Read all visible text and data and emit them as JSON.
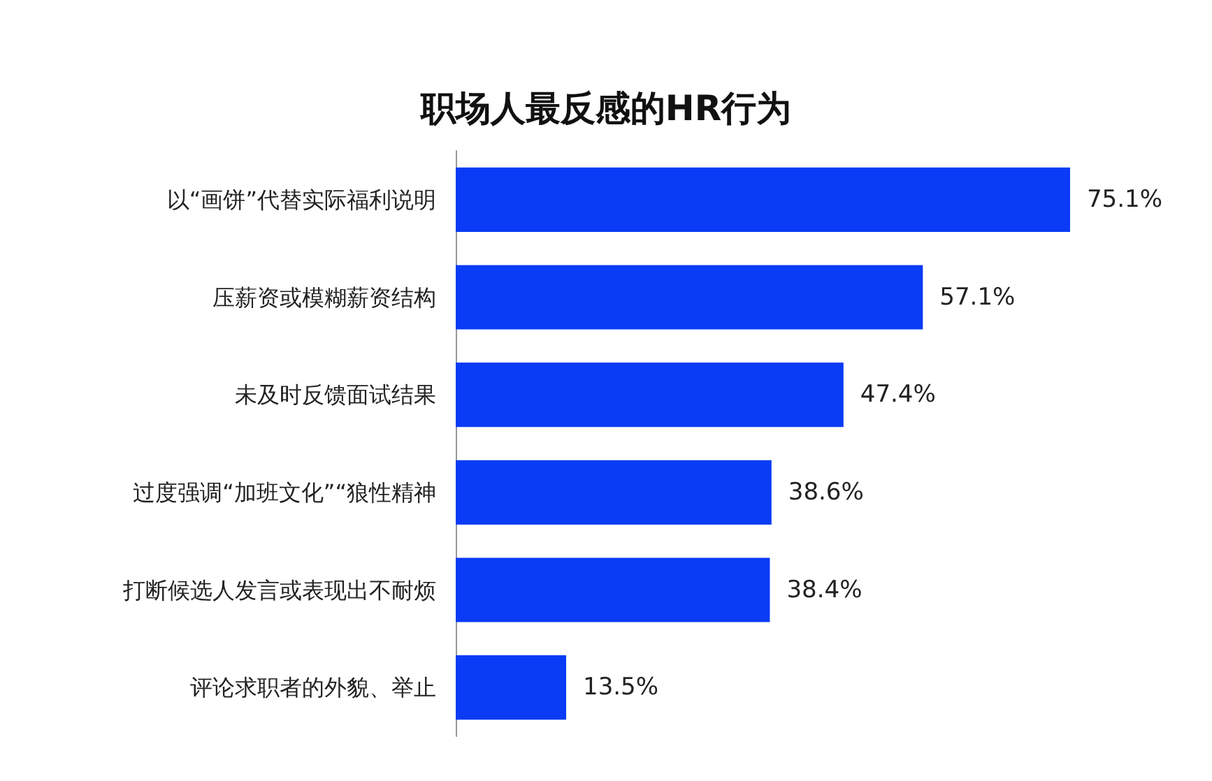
{
  "chart_data": {
    "type": "bar",
    "orientation": "horizontal",
    "title": "职场人最反感的HR行为",
    "categories": [
      "以“画饼”代替实际福利说明",
      "压薪资或模糊薪资结构",
      "未及时反馈面试结果",
      "过度强调“加班文化”“狼性精神",
      "打断候选人发言或表现出不耐烦",
      "评论求职者的外貌、举止"
    ],
    "values": [
      75.1,
      57.1,
      47.4,
      38.6,
      38.4,
      13.5
    ],
    "value_labels": [
      "75.1%",
      "57.1%",
      "47.4%",
      "38.6%",
      "38.4%",
      "13.5%"
    ],
    "color": "#0a3cf5"
  }
}
